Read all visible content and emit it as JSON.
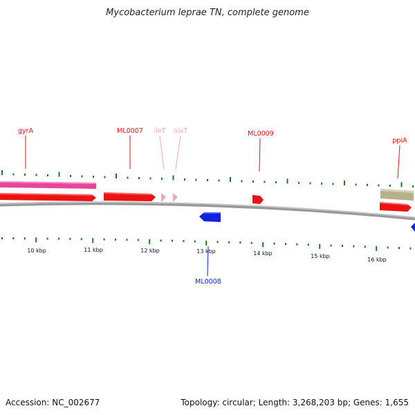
{
  "title": "Mycobacterium leprae TN, complete genome",
  "accession": "Accession: NC_002677",
  "summary": "Topology: circular; Length: 3,268,203 bp; Genes: 1,655",
  "colors": {
    "forward_cds": "#ee1111",
    "reverse_cds": "#1122dd",
    "trna": "#f4a3cc",
    "pink_bar": "#e8459a",
    "tan_bar": "#b8b088",
    "tick": "#1a7a1a",
    "backbone": "#888888"
  },
  "ticks": [
    {
      "label": "10 kbp"
    },
    {
      "label": "11 kbp"
    },
    {
      "label": "12 kbp"
    },
    {
      "label": "13 kbp"
    },
    {
      "label": "14 kbp"
    },
    {
      "label": "15 kbp"
    },
    {
      "label": "16 kbp"
    }
  ],
  "genes": [
    {
      "label": "gyrA",
      "type": "forward"
    },
    {
      "label": "ML0007",
      "type": "forward"
    },
    {
      "label": "ileT",
      "type": "trna"
    },
    {
      "label": "alaT",
      "type": "trna"
    },
    {
      "label": "ML0009",
      "type": "forward"
    },
    {
      "label": "ppiA",
      "type": "forward"
    },
    {
      "label": "ML0008",
      "type": "reverse"
    }
  ]
}
